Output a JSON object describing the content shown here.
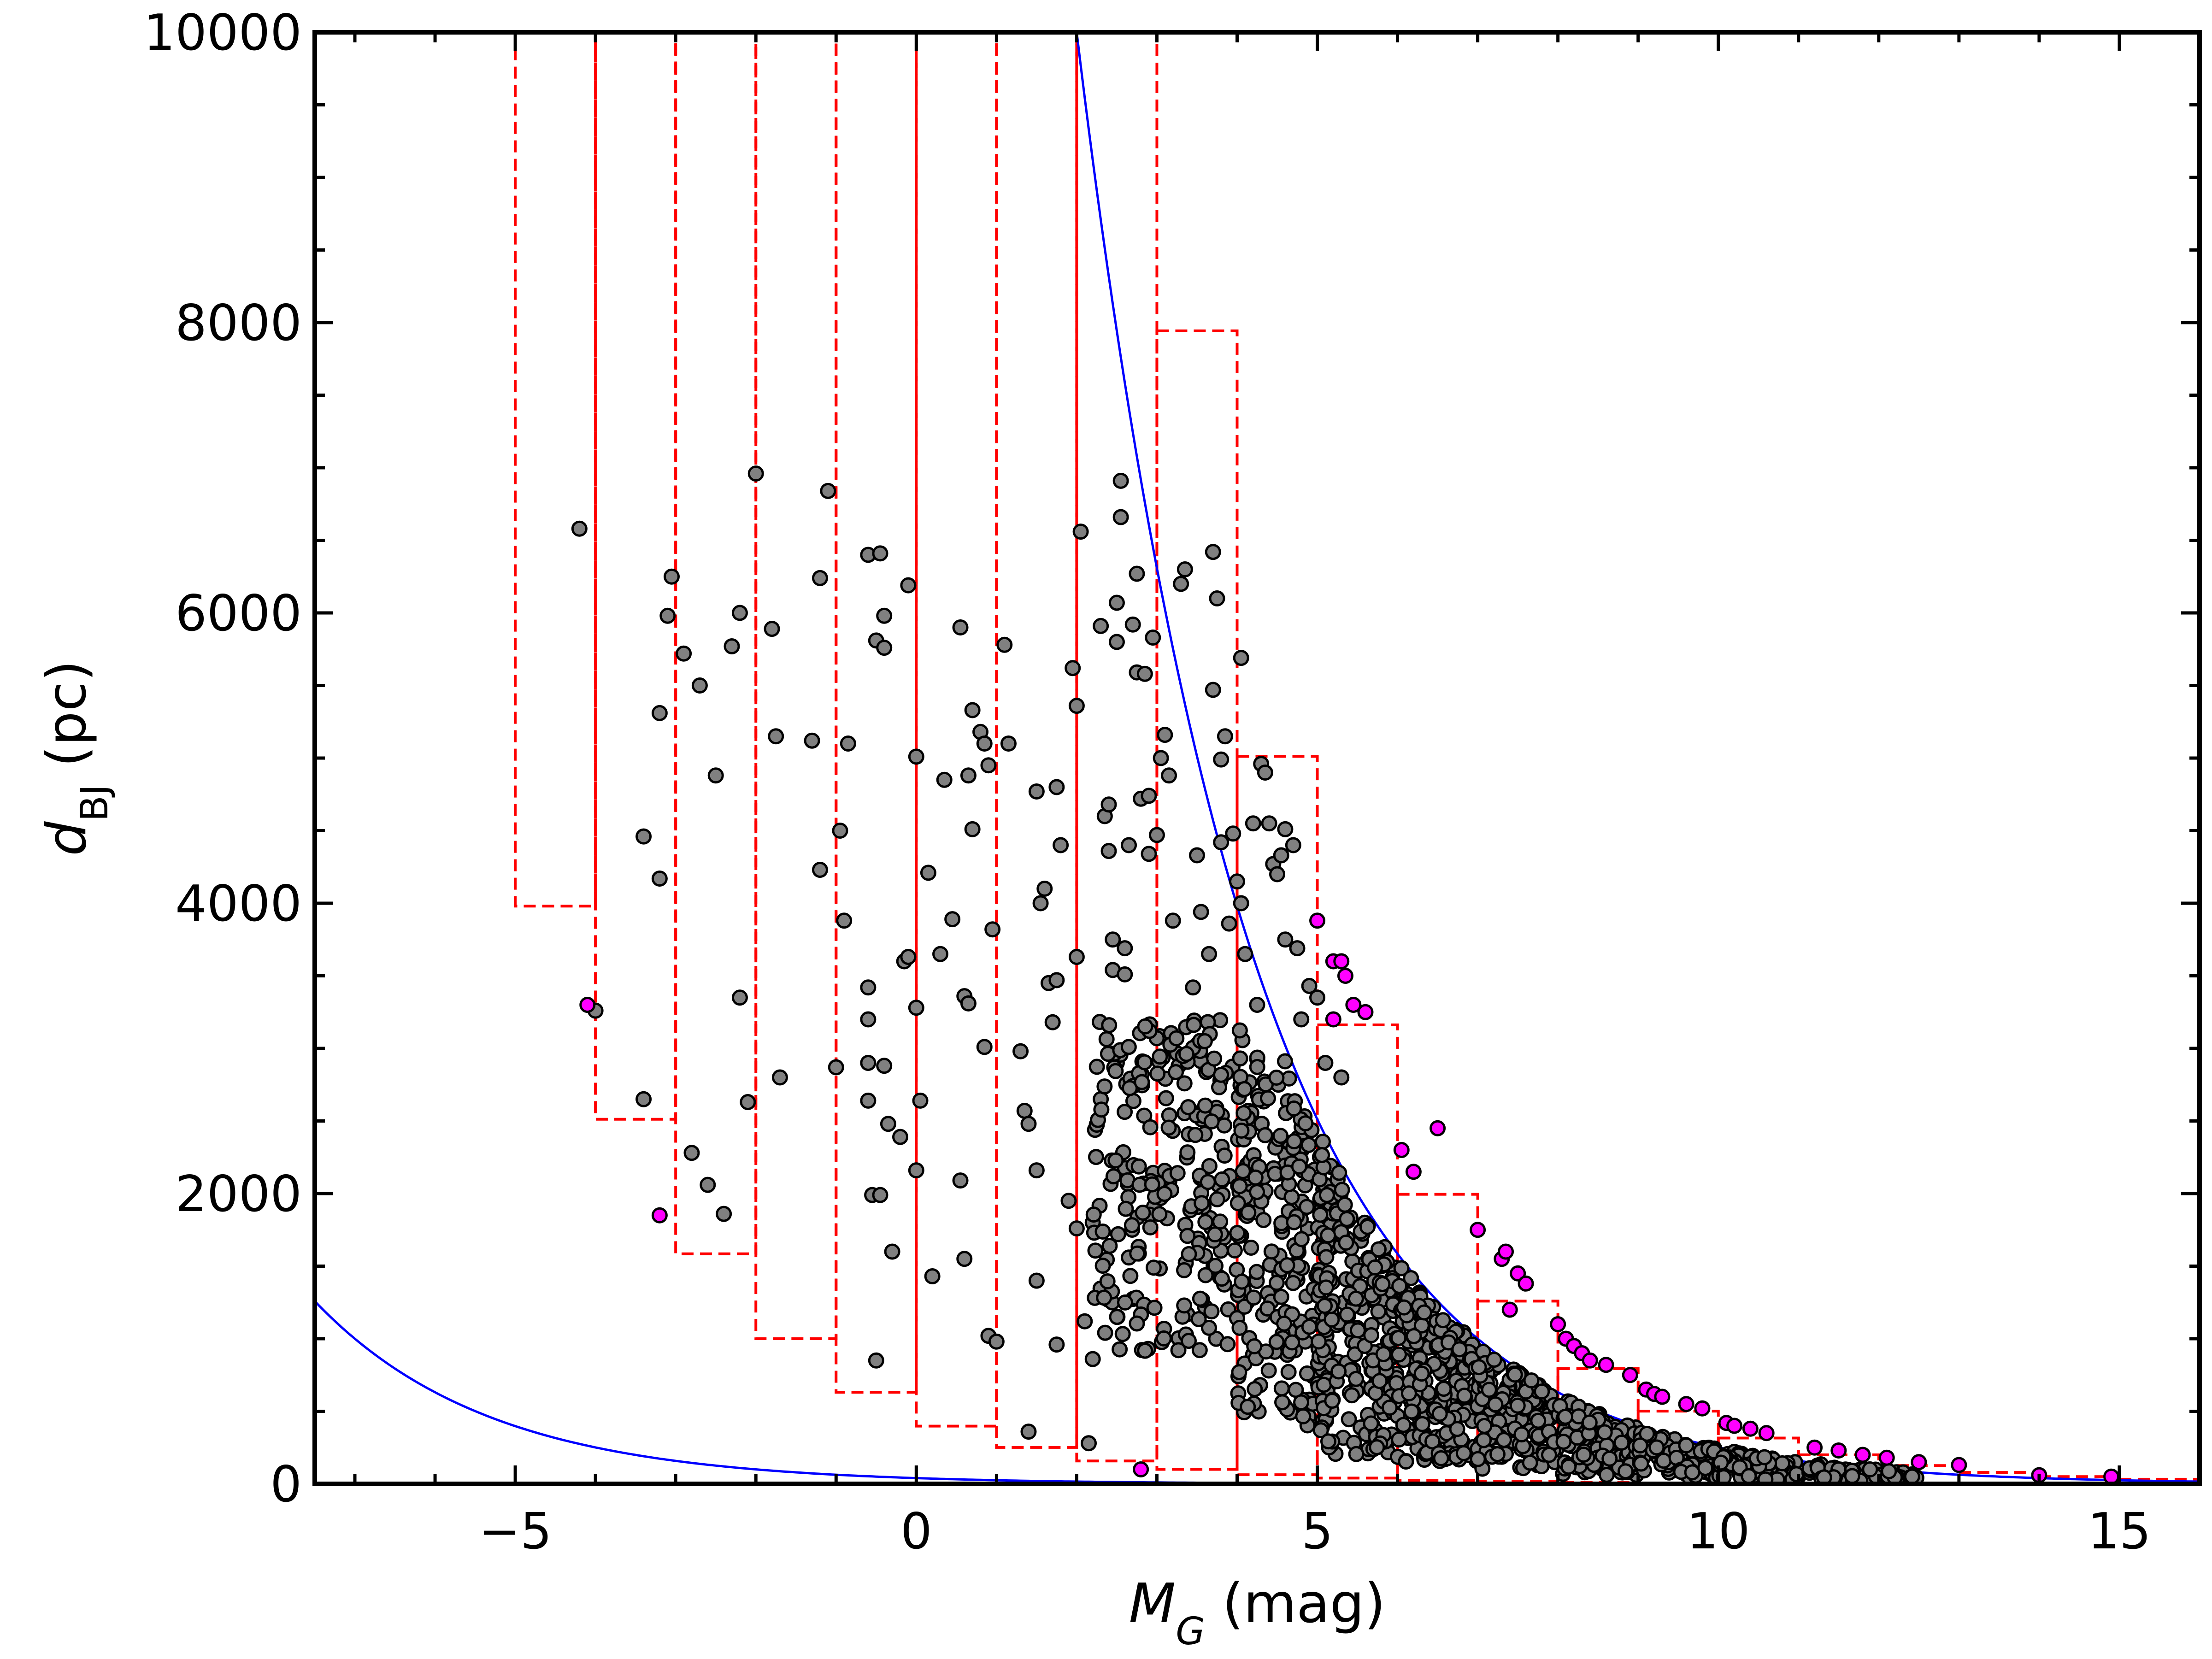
{
  "chart_data": {
    "type": "scatter",
    "xlabel": {
      "symbol": "M",
      "subscript": "G",
      "unit": "(mag)"
    },
    "ylabel": {
      "symbol": "d",
      "subscript": "BJ",
      "unit": "(pc)"
    },
    "xlim": [
      -7.5,
      16
    ],
    "ylim": [
      0,
      10000
    ],
    "x_ticks": [
      -5,
      0,
      5,
      10,
      15
    ],
    "x_tick_labels": [
      "−5",
      "0",
      "5",
      "10",
      "15"
    ],
    "y_ticks": [
      0,
      2000,
      4000,
      6000,
      8000,
      10000
    ],
    "y_tick_labels": [
      "0",
      "2000",
      "4000",
      "6000",
      "8000",
      "10000"
    ],
    "colors": {
      "grey_points": "#808080",
      "magenta_points": "#ff00ff",
      "point_edge": "#000000",
      "limit_curves": "#0000ff",
      "bins": "#ff0000"
    },
    "grid": false,
    "legend": "none",
    "bins": {
      "edges": [
        -5,
        -4,
        -3,
        -2,
        -1,
        0,
        1,
        2,
        3,
        4,
        5,
        6,
        7,
        8,
        9,
        10,
        11,
        12,
        13,
        14,
        15,
        16
      ],
      "lower_d": [
        3980,
        2512,
        1585,
        1000,
        631,
        398,
        251,
        158,
        100,
        63,
        40,
        25,
        16,
        10,
        6,
        4,
        2.5,
        1.6,
        1.0,
        0.6,
        0.4
      ],
      "upper_d": [
        10000,
        10000,
        10000,
        10000,
        10000,
        10000,
        10000,
        10000,
        7943,
        5012,
        3162,
        1995,
        1259,
        794,
        501,
        316,
        200,
        126,
        79,
        50,
        32
      ]
    },
    "curves": {
      "lower_limit": "d = 10^((G_min - M_G + 5)/5) with G_min = 3",
      "upper_limit": "d = 10^((G_max - M_G + 5)/5) with G_max = 17"
    },
    "scatter": {
      "magenta": [
        [
          -4.1,
          3300
        ],
        [
          -3.2,
          1850
        ],
        [
          2.8,
          100
        ],
        [
          5.0,
          3880
        ],
        [
          5.2,
          3600
        ],
        [
          5.35,
          3500
        ],
        [
          5.3,
          3600
        ],
        [
          5.45,
          3300
        ],
        [
          5.6,
          3250
        ],
        [
          5.2,
          3200
        ],
        [
          6.05,
          2300
        ],
        [
          6.2,
          2150
        ],
        [
          6.5,
          2450
        ],
        [
          7.0,
          1750
        ],
        [
          7.3,
          1550
        ],
        [
          7.35,
          1600
        ],
        [
          7.5,
          1450
        ],
        [
          7.6,
          1380
        ],
        [
          7.4,
          1200
        ],
        [
          8.0,
          1100
        ],
        [
          8.1,
          1000
        ],
        [
          8.2,
          950
        ],
        [
          8.3,
          900
        ],
        [
          8.4,
          850
        ],
        [
          8.6,
          820
        ],
        [
          8.9,
          750
        ],
        [
          9.1,
          650
        ],
        [
          9.2,
          620
        ],
        [
          9.3,
          600
        ],
        [
          9.6,
          550
        ],
        [
          9.8,
          520
        ],
        [
          10.1,
          420
        ],
        [
          10.2,
          400
        ],
        [
          10.4,
          380
        ],
        [
          10.6,
          350
        ],
        [
          11.2,
          250
        ],
        [
          11.5,
          230
        ],
        [
          11.8,
          200
        ],
        [
          12.1,
          180
        ],
        [
          12.5,
          150
        ],
        [
          13.0,
          130
        ],
        [
          14.0,
          60
        ],
        [
          14.9,
          50
        ]
      ],
      "grey": [
        [
          -4.2,
          6580
        ],
        [
          -4.0,
          3260
        ],
        [
          -3.4,
          4460
        ],
        [
          -3.4,
          2650
        ],
        [
          -3.2,
          5310
        ],
        [
          -3.2,
          4170
        ],
        [
          -3.1,
          5980
        ],
        [
          -3.05,
          6250
        ],
        [
          -2.9,
          5720
        ],
        [
          -2.8,
          2280
        ],
        [
          -2.7,
          5500
        ],
        [
          -2.6,
          2060
        ],
        [
          -2.5,
          4880
        ],
        [
          -2.4,
          1860
        ],
        [
          -2.3,
          5770
        ],
        [
          -2.2,
          6000
        ],
        [
          -2.2,
          3350
        ],
        [
          -2.1,
          2630
        ],
        [
          -2.0,
          6960
        ],
        [
          -1.8,
          5890
        ],
        [
          -1.75,
          5150
        ],
        [
          -1.7,
          2800
        ],
        [
          -1.3,
          5120
        ],
        [
          -1.2,
          6240
        ],
        [
          -1.2,
          4230
        ],
        [
          -1.1,
          6840
        ],
        [
          -1.0,
          2870
        ],
        [
          -0.95,
          4500
        ],
        [
          -0.9,
          3880
        ],
        [
          -0.85,
          5100
        ],
        [
          -0.6,
          6400
        ],
        [
          -0.6,
          3420
        ],
        [
          -0.6,
          3200
        ],
        [
          -0.6,
          2900
        ],
        [
          -0.6,
          2640
        ],
        [
          -0.55,
          1990
        ],
        [
          -0.5,
          5810
        ],
        [
          -0.5,
          850
        ],
        [
          -0.45,
          6410
        ],
        [
          -0.45,
          1990
        ],
        [
          -0.4,
          5980
        ],
        [
          -0.4,
          5760
        ],
        [
          -0.4,
          2880
        ],
        [
          -0.35,
          2480
        ],
        [
          -0.3,
          1600
        ],
        [
          -0.2,
          2390
        ],
        [
          -0.15,
          3600
        ],
        [
          -0.1,
          3630
        ],
        [
          -0.1,
          6190
        ],
        [
          0.0,
          5010
        ],
        [
          0.0,
          3280
        ],
        [
          0.05,
          2640
        ],
        [
          0.0,
          2160
        ],
        [
          0.15,
          4210
        ],
        [
          0.2,
          1430
        ],
        [
          0.3,
          3650
        ],
        [
          0.35,
          4850
        ],
        [
          0.45,
          3890
        ],
        [
          0.55,
          5900
        ],
        [
          0.55,
          2090
        ],
        [
          0.6,
          1550
        ],
        [
          0.6,
          3360
        ],
        [
          0.65,
          3310
        ],
        [
          0.65,
          4880
        ],
        [
          0.7,
          4510
        ],
        [
          0.7,
          5330
        ],
        [
          0.8,
          5180
        ],
        [
          0.85,
          5100
        ],
        [
          0.85,
          3010
        ],
        [
          0.9,
          4950
        ],
        [
          0.9,
          1020
        ],
        [
          0.95,
          3820
        ],
        [
          1.0,
          980
        ],
        [
          1.1,
          5780
        ],
        [
          1.15,
          5100
        ],
        [
          1.3,
          2980
        ],
        [
          1.35,
          2570
        ],
        [
          1.4,
          2480
        ],
        [
          1.4,
          360
        ],
        [
          1.5,
          4770
        ],
        [
          1.5,
          2160
        ],
        [
          1.5,
          1400
        ],
        [
          1.55,
          4000
        ],
        [
          1.6,
          4100
        ],
        [
          1.65,
          3450
        ],
        [
          1.7,
          3180
        ],
        [
          1.75,
          4800
        ],
        [
          1.75,
          3470
        ],
        [
          1.75,
          960
        ],
        [
          1.8,
          4400
        ],
        [
          1.9,
          1950
        ],
        [
          1.95,
          5620
        ],
        [
          2.0,
          5360
        ],
        [
          2.0,
          3630
        ],
        [
          2.0,
          1760
        ],
        [
          2.05,
          6560
        ],
        [
          2.1,
          1120
        ],
        [
          2.15,
          280
        ],
        [
          2.2,
          1800
        ],
        [
          2.2,
          860
        ],
        [
          2.3,
          5910
        ],
        [
          2.3,
          2650
        ],
        [
          2.35,
          4600
        ],
        [
          2.4,
          4680
        ],
        [
          2.4,
          4360
        ],
        [
          2.45,
          3750
        ],
        [
          2.45,
          3540
        ],
        [
          2.5,
          6070
        ],
        [
          2.5,
          5800
        ],
        [
          2.5,
          2900
        ],
        [
          2.55,
          6660
        ],
        [
          2.55,
          6910
        ],
        [
          2.6,
          3690
        ],
        [
          2.6,
          3510
        ],
        [
          2.65,
          4400
        ],
        [
          2.7,
          5920
        ],
        [
          2.75,
          6270
        ],
        [
          2.75,
          5590
        ],
        [
          2.8,
          4720
        ],
        [
          2.85,
          5580
        ],
        [
          2.9,
          4740
        ],
        [
          2.9,
          4340
        ],
        [
          2.95,
          5830
        ],
        [
          3.0,
          4470
        ],
        [
          3.05,
          5000
        ],
        [
          3.1,
          5160
        ],
        [
          3.15,
          4880
        ],
        [
          3.2,
          3880
        ],
        [
          3.3,
          6200
        ],
        [
          3.35,
          6300
        ],
        [
          3.45,
          3420
        ],
        [
          3.5,
          4330
        ],
        [
          3.55,
          3940
        ],
        [
          3.65,
          3650
        ],
        [
          3.7,
          5470
        ],
        [
          3.7,
          6420
        ],
        [
          3.75,
          6100
        ],
        [
          3.8,
          4990
        ],
        [
          3.8,
          4420
        ],
        [
          3.85,
          5150
        ],
        [
          3.9,
          3860
        ],
        [
          3.95,
          4480
        ],
        [
          4.0,
          4150
        ],
        [
          4.05,
          5690
        ],
        [
          4.05,
          4000
        ],
        [
          4.1,
          3650
        ],
        [
          4.2,
          4550
        ],
        [
          4.25,
          3300
        ],
        [
          4.3,
          4960
        ],
        [
          4.35,
          4900
        ],
        [
          4.4,
          4550
        ],
        [
          4.45,
          4270
        ],
        [
          4.5,
          4200
        ],
        [
          4.55,
          4330
        ],
        [
          4.6,
          4510
        ],
        [
          4.7,
          4400
        ],
        [
          4.6,
          3750
        ],
        [
          4.75,
          3690
        ],
        [
          4.8,
          3200
        ],
        [
          4.9,
          3430
        ],
        [
          5.0,
          3350
        ],
        [
          5.1,
          2900
        ],
        [
          5.3,
          2800
        ]
      ]
    },
    "dense_clusters": [
      {
        "x": [
          2.2,
          4.2
        ],
        "d": [
          900,
          3200
        ],
        "n": 260
      },
      {
        "x": [
          4.0,
          5.2
        ],
        "d": [
          400,
          3000
        ],
        "n": 240
      },
      {
        "x": [
          5.0,
          6.0
        ],
        "d": [
          200,
          2600
        ],
        "n": 220
      },
      {
        "x": [
          6.0,
          7.0
        ],
        "d": [
          150,
          1800
        ],
        "n": 220
      },
      {
        "x": [
          7.0,
          8.0
        ],
        "d": [
          100,
          1200
        ],
        "n": 170
      },
      {
        "x": [
          8.0,
          9.0
        ],
        "d": [
          60,
          800
        ],
        "n": 140
      },
      {
        "x": [
          9.0,
          10.0
        ],
        "d": [
          40,
          500
        ],
        "n": 110
      },
      {
        "x": [
          10.0,
          11.0
        ],
        "d": [
          30,
          300
        ],
        "n": 80
      },
      {
        "x": [
          11.0,
          12.5
        ],
        "d": [
          20,
          180
        ],
        "n": 60
      }
    ]
  }
}
